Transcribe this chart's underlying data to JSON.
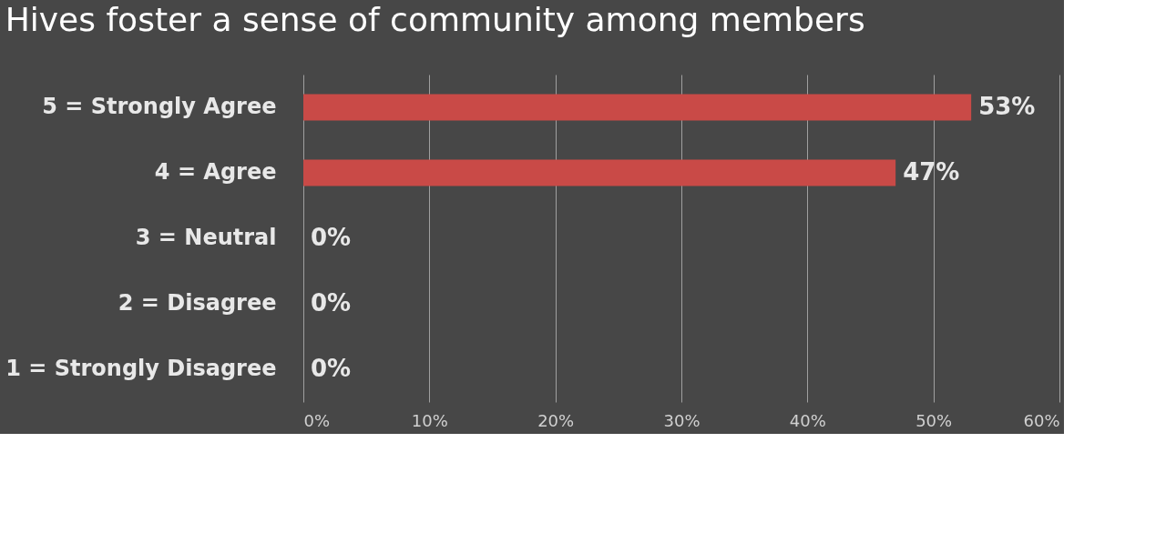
{
  "chart_data": {
    "type": "bar",
    "orientation": "horizontal",
    "title": "Hives foster a sense of community among members",
    "categories": [
      "5 = Strongly Agree",
      "4 = Agree",
      "3 = Neutral",
      "2 = Disagree",
      "1 = Strongly Disagree"
    ],
    "values": [
      53,
      47,
      0,
      0,
      0
    ],
    "color": "#c94a47",
    "value_labels": [
      "53%",
      "47%",
      "0%",
      "0%",
      "0%"
    ],
    "xlim": [
      0,
      60
    ],
    "xticks": [
      {
        "value": 0,
        "label": "0%"
      },
      {
        "value": 10,
        "label": "10%"
      },
      {
        "value": 20,
        "label": "20%"
      },
      {
        "value": 30,
        "label": "30%"
      },
      {
        "value": 40,
        "label": "40%"
      },
      {
        "value": 50,
        "label": "50%"
      },
      {
        "value": 60,
        "label": "60%"
      }
    ],
    "grid": "x"
  }
}
